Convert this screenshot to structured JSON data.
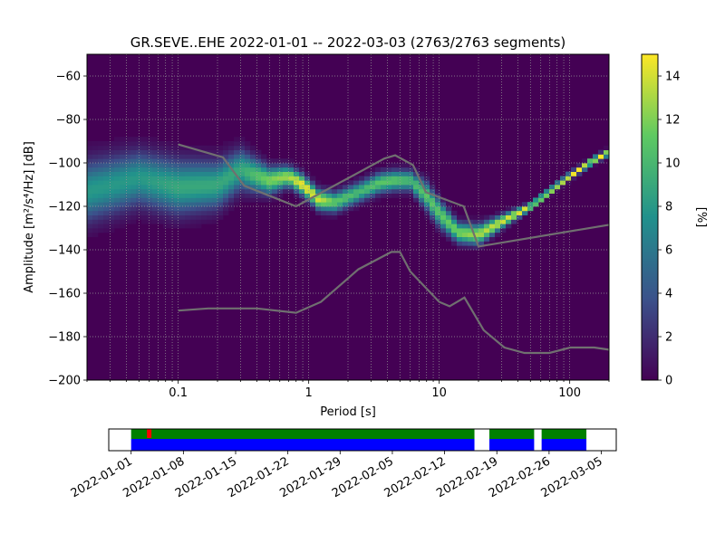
{
  "chart_data": {
    "type": "heatmap",
    "title": "GR.SEVE..EHE   2022-01-01 -- 2022-03-03  (2763/2763 segments)",
    "xlabel": "Period [s]",
    "ylabel": "Amplitude [m²/s⁴/Hz] [dB]",
    "xscale": "log",
    "xlim": [
      0.02,
      200
    ],
    "ylim": [
      -200,
      -50
    ],
    "x_ticks": [
      {
        "value": 0.1,
        "label": "0.1"
      },
      {
        "value": 1,
        "label": "1"
      },
      {
        "value": 10,
        "label": "10"
      },
      {
        "value": 100,
        "label": "100"
      }
    ],
    "y_ticks": [
      {
        "value": -60,
        "label": "−60"
      },
      {
        "value": -80,
        "label": "−80"
      },
      {
        "value": -100,
        "label": "−100"
      },
      {
        "value": -120,
        "label": "−120"
      },
      {
        "value": -140,
        "label": "−140"
      },
      {
        "value": -160,
        "label": "−160"
      },
      {
        "value": -180,
        "label": "−180"
      },
      {
        "value": -200,
        "label": "−200"
      }
    ],
    "grid": true,
    "colorbar": {
      "label": "[%]",
      "range": [
        0,
        15
      ],
      "ticks": [
        {
          "value": 0,
          "label": "0"
        },
        {
          "value": 2,
          "label": "2"
        },
        {
          "value": 4,
          "label": "4"
        },
        {
          "value": 6,
          "label": "6"
        },
        {
          "value": 8,
          "label": "8"
        },
        {
          "value": 10,
          "label": "10"
        },
        {
          "value": 12,
          "label": "12"
        },
        {
          "value": 14,
          "label": "14"
        }
      ],
      "colors": [
        "#440154",
        "#3b528b",
        "#21918c",
        "#5ec962",
        "#fde725"
      ]
    },
    "density_ridge": {
      "periods": [
        0.02,
        0.05,
        0.1,
        0.2,
        0.3,
        0.5,
        0.7,
        0.9,
        1.2,
        1.6,
        2.5,
        3.5,
        4.5,
        6,
        8,
        10,
        14,
        20,
        30,
        50,
        100,
        150,
        200
      ],
      "mode_db": [
        -113,
        -107,
        -111,
        -110,
        -103,
        -108,
        -106,
        -110,
        -117,
        -118,
        -113,
        -109,
        -108,
        -108,
        -115,
        -123,
        -132,
        -133,
        -127,
        -120,
        -106,
        -99,
        -95
      ],
      "spread_db": [
        9,
        8,
        8,
        7,
        6,
        4,
        3,
        3,
        3,
        3,
        3,
        3,
        3,
        3,
        4,
        4,
        3,
        3,
        2,
        1,
        1,
        1,
        1
      ],
      "peak_percent": [
        8,
        8,
        9,
        9,
        9,
        12,
        13,
        15,
        14,
        11,
        10,
        11,
        11,
        10,
        11,
        11,
        12,
        13,
        14,
        15,
        15,
        15,
        15
      ]
    },
    "noise_models": [
      {
        "periods": [
          0.1,
          0.17,
          0.4,
          0.8,
          1.24,
          2.4,
          4.3,
          5.0,
          6.0,
          10,
          12,
          15.6,
          21.9,
          31.6,
          45,
          70,
          101,
          154,
          200
        ],
        "values": [
          -168,
          -167,
          -167,
          -169,
          -164,
          -149,
          -141,
          -141,
          -150,
          -164,
          -166,
          -162,
          -177,
          -185,
          -187.5,
          -187.5,
          -185,
          -185,
          -186
        ]
      },
      {
        "periods": [
          0.1,
          0.22,
          0.32,
          0.8,
          3.8,
          4.6,
          6.3,
          7.9,
          15.4,
          20,
          200
        ],
        "values": [
          -91.5,
          -97.4,
          -110.5,
          -120,
          -98,
          -96.5,
          -101,
          -113.5,
          -120,
          -138.5,
          -128.5
        ]
      }
    ],
    "timeline": {
      "x_ticks": [
        "2022-01-01",
        "2022-01-08",
        "2022-01-15",
        "2022-01-22",
        "2022-01-29",
        "2022-02-05",
        "2022-02-12",
        "2022-02-19",
        "2022-02-26",
        "2022-03-05"
      ],
      "range": [
        "2021-12-29",
        "2022-03-07"
      ],
      "coverage": [
        "2022-01-01",
        "2022-03-03"
      ],
      "gaps": [
        [
          "2022-02-16",
          "2022-02-18"
        ],
        [
          "2022-02-24",
          "2022-02-25"
        ]
      ],
      "overlap_marks": [
        [
          "2022-01-03",
          "2022-01-04"
        ]
      ],
      "colors": {
        "data": "#0000ff",
        "processed": "#008000",
        "gap": "#ffffff",
        "overlap": "#ff0000"
      }
    }
  }
}
